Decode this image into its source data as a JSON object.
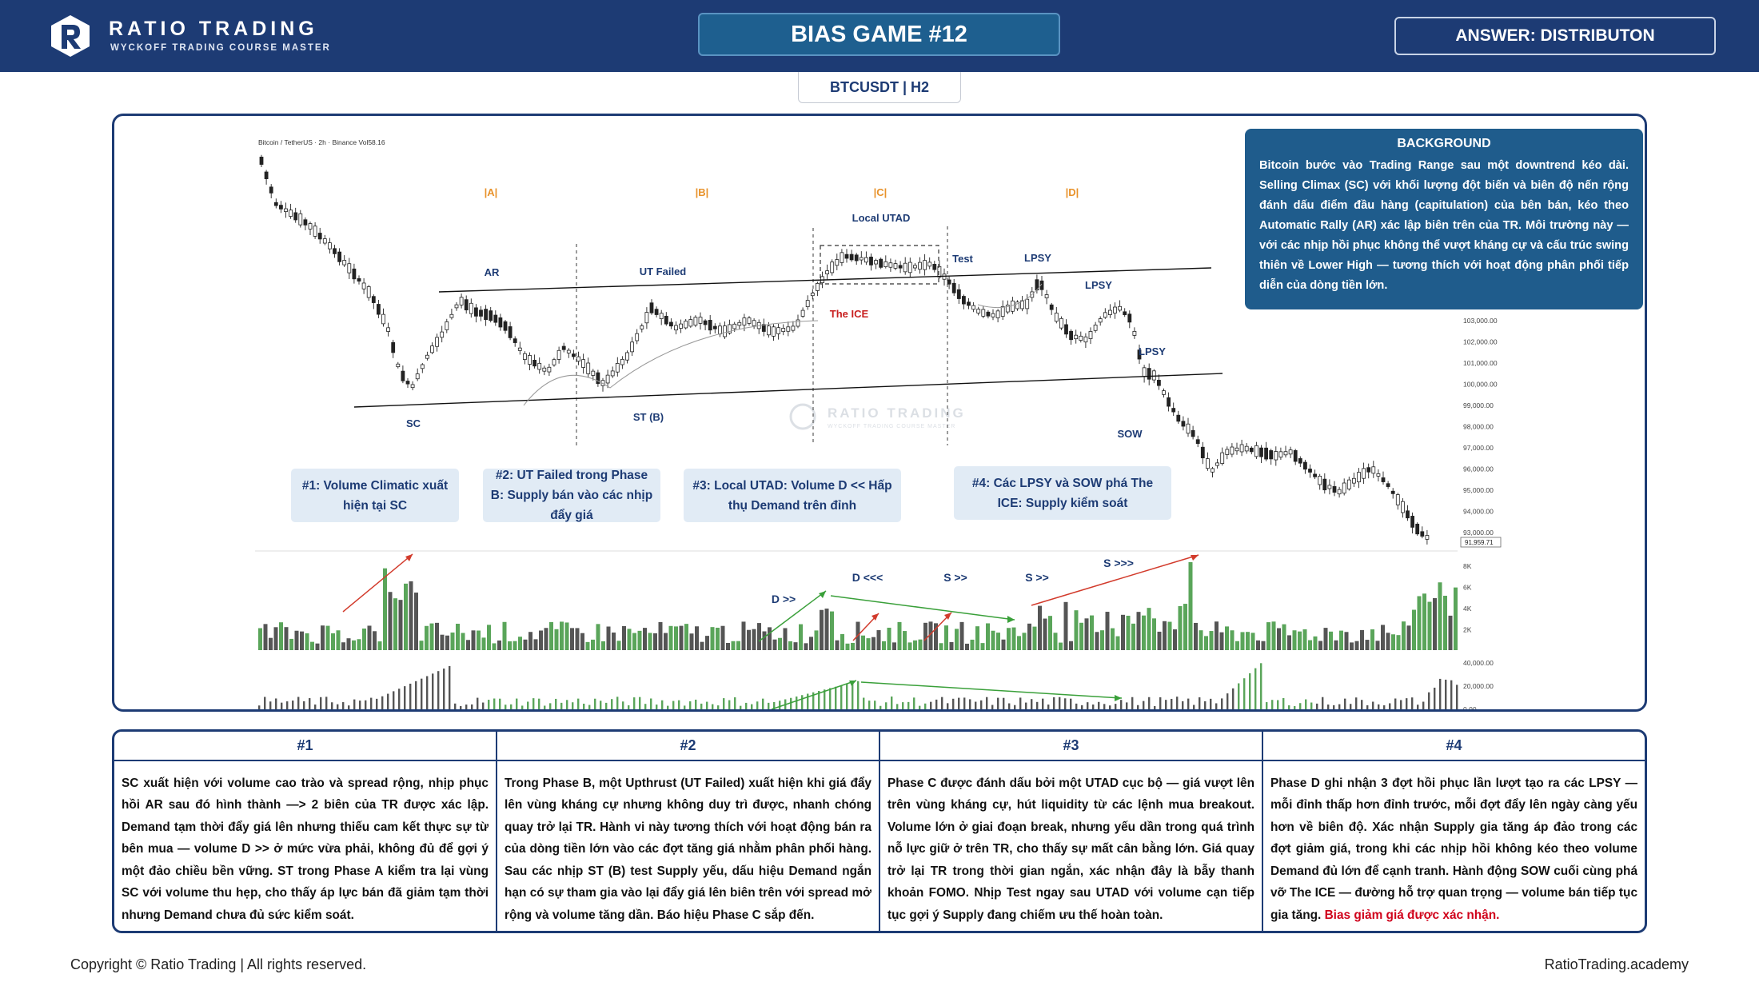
{
  "header": {
    "brand_name": "RATIO TRADING",
    "brand_sub": "WYCKOFF TRADING COURSE MASTER",
    "game_title": "BIAS GAME #12",
    "answer": "ANSWER: DISTRIBUTON"
  },
  "symbol": "BTCUSDT | H2",
  "chart": {
    "source_label": "Bitcoin / TetherUS · 2h · Binance  Vol58.16",
    "phases": [
      "|A|",
      "|B|",
      "|C|",
      "|D|"
    ],
    "events": {
      "ar": "AR",
      "sc": "SC",
      "ut_failed": "UT Failed",
      "st_b": "ST (B)",
      "local_utad": "Local UTAD",
      "the_ice": "The ICE",
      "test": "Test",
      "lpsy1": "LPSY",
      "lpsy2": "LPSY",
      "lpsy3": "LPSY",
      "sow": "SOW"
    },
    "volume_labels": [
      "D >>",
      "D <<<",
      "S >>",
      "S >>",
      "S >>>"
    ],
    "watermark": "RATIO TRADING",
    "watermark_sub": "WYCKOFF TRADING COURSE MASTER",
    "price_axis": [
      "103,000.00",
      "102,000.00",
      "101,000.00",
      "100,000.00",
      "99,000.00",
      "98,000.00",
      "97,000.00",
      "96,000.00",
      "95,000.00",
      "94,000.00",
      "93,000.00"
    ],
    "last_price": "91,959.71",
    "volume_axis": [
      "8K",
      "6K",
      "4K",
      "2K"
    ],
    "obv_axis": [
      "40,000.00",
      "20,000.00",
      "0.00"
    ],
    "colors": {
      "up": "#5aa55a",
      "down": "#3c3c3c",
      "trend_up": "#d23b2c",
      "trend_green": "#3aa03a",
      "line": "#111111"
    }
  },
  "background": {
    "title": "BACKGROUND",
    "text": "Bitcoin bước vào Trading Range sau một downtrend kéo dài. Selling Climax (SC) với khối lượng đột biến và biên độ nến rộng đánh dấu điểm đầu hàng (capitulation) của bên bán, kéo theo Automatic Rally (AR) xác lập biên trên của TR. Môi trường này — với các nhịp hồi phục không thể vượt kháng cự và cấu trúc swing thiên về Lower High — tương thích với hoạt động phân phối tiếp diễn của dòng tiền lớn."
  },
  "notes": {
    "n1": "#1: Volume Climatic xuất hiện tại SC",
    "n2": "#2: UT Failed trong Phase B: Supply bán vào các nhịp đẩy giá",
    "n3": "#3: Local UTAD: Volume D << Hấp thụ Demand trên đỉnh",
    "n4": "#4: Các LPSY và SOW phá The ICE: Supply kiểm soát"
  },
  "table": {
    "columns": [
      {
        "head": "#1",
        "body": "SC xuất hiện với volume cao trào và spread rộng, nhịp phục hồi AR sau đó hình thành —> 2 biên của TR được xác lập. Demand tạm thời đẩy giá lên nhưng thiếu cam kết thực sự từ bên mua — volume D >> ở mức vừa phải, không đủ để gợi ý một đảo chiều bền vững. ST trong Phase A kiểm tra lại vùng SC với volume thu hẹp, cho thấy áp lực bán đã giảm tạm thời nhưng Demand chưa đủ sức kiểm soát."
      },
      {
        "head": "#2",
        "body": "Trong Phase B, một Upthrust (UT Failed) xuất hiện khi giá đẩy lên vùng kháng cự nhưng không duy trì được, nhanh chóng quay trở lại TR. Hành vi này tương thích với hoạt động bán ra của dòng tiền lớn vào các đợt tăng giá nhằm phân phối hàng. Sau các nhịp ST (B) test Supply yếu, dấu hiệu Demand ngắn hạn có sự tham gia vào lại đẩy giá lên biên trên với spread mở rộng và volume tăng dần. Báo hiệu Phase C sắp đến."
      },
      {
        "head": "#3",
        "body": "Phase C được đánh dấu bởi một UTAD cục bộ — giá vượt lên trên vùng kháng cự, hút liquidity từ các lệnh mua breakout. Volume lớn ở giai đoạn break, nhưng yếu dần trong quá trình nỗ lực giữ ở trên TR, cho thấy sự mất cân bằng lớn. Giá quay trở lại TR trong thời gian ngắn, xác nhận đây là bẫy thanh khoản FOMO. Nhịp Test ngay sau UTAD với volume cạn tiếp tục gợi ý Supply đang chiếm ưu thế hoàn toàn."
      },
      {
        "head": "#4",
        "body": "Phase D ghi nhận 3 đợt hồi phục lần lượt tạo ra các LPSY — mỗi đỉnh thấp hơn đỉnh trước, mỗi đợt đẩy lên ngày càng yếu hơn về biên độ. Xác nhận Supply gia tăng áp đảo trong các đợt giảm giá, trong khi các nhịp hồi không kéo theo volume Demand đủ lớn để cạnh tranh. Hành động SOW cuối cùng phá vỡ The ICE — đường hỗ trợ quan trọng — volume bán tiếp tục gia tăng.",
        "highlight": "Bias giảm giá được xác nhận."
      }
    ]
  },
  "footer": {
    "copyright": "Copyright © Ratio Trading | All rights reserved.",
    "site": "RatioTrading.academy"
  }
}
